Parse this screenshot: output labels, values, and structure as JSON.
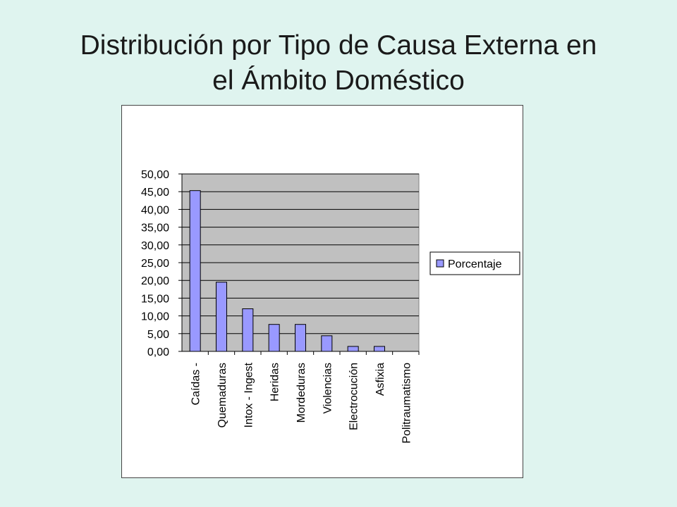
{
  "slide": {
    "title_line1": "Distribución por Tipo de Causa Externa en",
    "title_line2": "el Ámbito Doméstico"
  },
  "chart_data": {
    "type": "bar",
    "categories": [
      "Caídas -",
      "Quemaduras",
      "Intox - Ingest",
      "Heridas",
      "Mordeduras",
      "Violencias",
      "Electrocución",
      "Asfixia",
      "Politraumatismo"
    ],
    "series": [
      {
        "name": "Porcentaje",
        "values": [
          45.3,
          19.5,
          12.0,
          7.6,
          7.6,
          4.4,
          1.4,
          1.4,
          0.0
        ]
      }
    ],
    "ylim": [
      0,
      50
    ],
    "yticks": [
      "0,00",
      "5,00",
      "10,00",
      "15,00",
      "20,00",
      "25,00",
      "30,00",
      "35,00",
      "40,00",
      "45,00",
      "50,00"
    ],
    "grid": true,
    "legend": "right",
    "colors": {
      "bar": "#9999ff",
      "plot_bg": "#c0c0c0",
      "frame_bg": "#ffffff"
    }
  }
}
